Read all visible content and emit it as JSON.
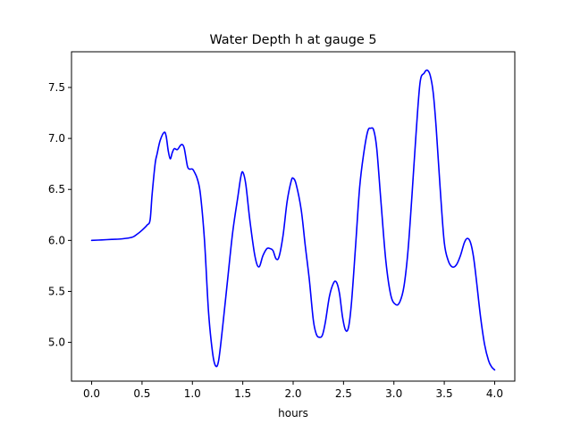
{
  "chart_data": {
    "type": "line",
    "title": "Water Depth h at gauge 5",
    "xlabel": "hours",
    "ylabel": "",
    "xlim": [
      -0.2,
      4.2
    ],
    "ylim": [
      4.62,
      7.85
    ],
    "xticks": [
      0.0,
      0.5,
      1.0,
      1.5,
      2.0,
      2.5,
      3.0,
      3.5,
      4.0
    ],
    "xtick_labels": [
      "0.0",
      "0.5",
      "1.0",
      "1.5",
      "2.0",
      "2.5",
      "3.0",
      "3.5",
      "4.0"
    ],
    "yticks": [
      5.0,
      5.5,
      6.0,
      6.5,
      7.0,
      7.5
    ],
    "ytick_labels": [
      "5.0",
      "5.5",
      "6.0",
      "6.5",
      "7.0",
      "7.5"
    ],
    "grid": false,
    "series": [
      {
        "color": "#0000ff",
        "x": [
          0.0,
          0.1,
          0.2,
          0.3,
          0.4,
          0.45,
          0.5,
          0.55,
          0.58,
          0.6,
          0.63,
          0.65,
          0.68,
          0.72,
          0.74,
          0.76,
          0.78,
          0.8,
          0.82,
          0.85,
          0.88,
          0.9,
          0.92,
          0.95,
          0.97,
          1.0,
          1.02,
          1.05,
          1.08,
          1.12,
          1.16,
          1.2,
          1.23,
          1.26,
          1.3,
          1.35,
          1.4,
          1.45,
          1.48,
          1.5,
          1.53,
          1.57,
          1.62,
          1.66,
          1.7,
          1.74,
          1.77,
          1.8,
          1.83,
          1.86,
          1.9,
          1.94,
          1.98,
          2.0,
          2.03,
          2.08,
          2.12,
          2.16,
          2.2,
          2.23,
          2.26,
          2.29,
          2.32,
          2.36,
          2.4,
          2.43,
          2.46,
          2.49,
          2.52,
          2.55,
          2.58,
          2.62,
          2.66,
          2.7,
          2.74,
          2.77,
          2.8,
          2.83,
          2.87,
          2.92,
          2.97,
          3.02,
          3.06,
          3.1,
          3.14,
          3.18,
          3.22,
          3.26,
          3.3,
          3.33,
          3.36,
          3.39,
          3.42,
          3.46,
          3.5,
          3.54,
          3.58,
          3.62,
          3.66,
          3.7,
          3.73,
          3.76,
          3.79,
          3.82,
          3.86,
          3.9,
          3.94,
          3.97,
          4.0
        ],
        "y": [
          6.0,
          6.005,
          6.01,
          6.015,
          6.03,
          6.06,
          6.1,
          6.15,
          6.2,
          6.45,
          6.75,
          6.85,
          6.98,
          7.06,
          7.02,
          6.88,
          6.8,
          6.86,
          6.9,
          6.89,
          6.93,
          6.94,
          6.9,
          6.73,
          6.7,
          6.7,
          6.67,
          6.6,
          6.45,
          6.0,
          5.3,
          4.9,
          4.77,
          4.82,
          5.15,
          5.62,
          6.08,
          6.42,
          6.62,
          6.67,
          6.55,
          6.2,
          5.85,
          5.74,
          5.85,
          5.92,
          5.92,
          5.9,
          5.82,
          5.84,
          6.05,
          6.38,
          6.58,
          6.61,
          6.55,
          6.3,
          5.95,
          5.62,
          5.22,
          5.08,
          5.05,
          5.07,
          5.2,
          5.45,
          5.58,
          5.59,
          5.48,
          5.25,
          5.12,
          5.15,
          5.4,
          5.95,
          6.52,
          6.85,
          7.07,
          7.1,
          7.08,
          6.9,
          6.4,
          5.8,
          5.46,
          5.37,
          5.4,
          5.55,
          5.9,
          6.45,
          7.05,
          7.55,
          7.64,
          7.67,
          7.62,
          7.45,
          7.1,
          6.5,
          5.98,
          5.8,
          5.74,
          5.76,
          5.85,
          5.98,
          6.02,
          5.98,
          5.84,
          5.6,
          5.25,
          4.98,
          4.82,
          4.76,
          4.73
        ]
      }
    ]
  }
}
